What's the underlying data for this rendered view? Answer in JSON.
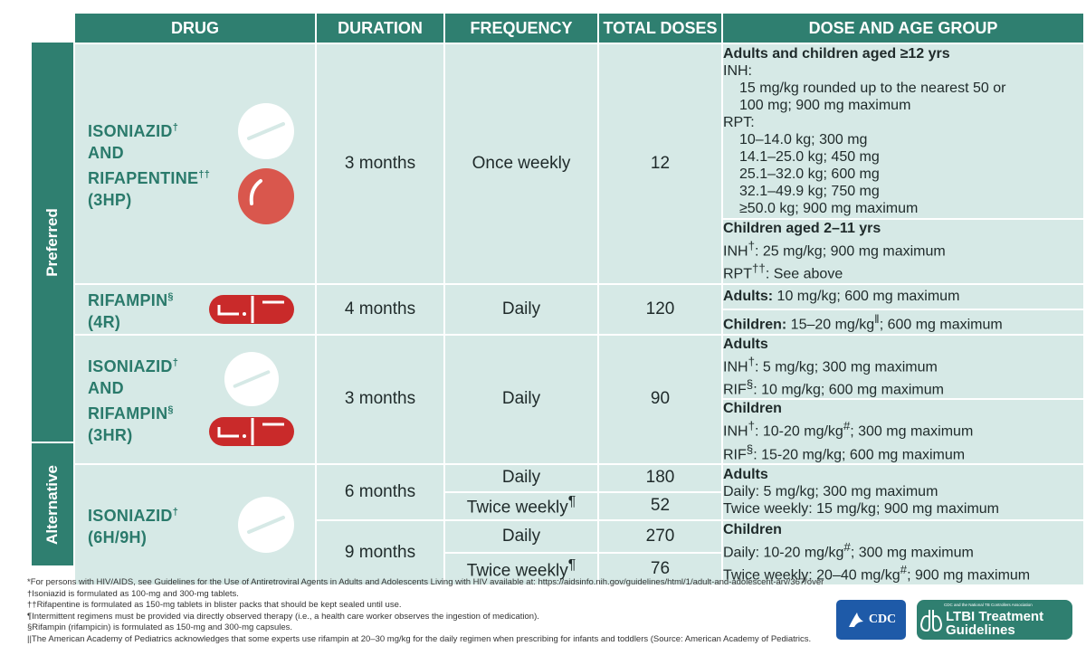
{
  "headers": {
    "drug": "DRUG",
    "duration": "DURATION",
    "frequency": "FREQUENCY",
    "total_doses": "TOTAL DOSES",
    "dose_age": "DOSE AND AGE GROUP"
  },
  "groups": {
    "preferred": "Preferred",
    "alternative": "Alternative"
  },
  "rows": {
    "r3hp": {
      "name1": "ISONIAZID",
      "sup1": "†",
      "name2": "AND",
      "name3": "RIFAPENTINE",
      "sup3": "††",
      "name4": "(3HP)",
      "duration": "3 months",
      "frequency": "Once weekly",
      "doses": "12",
      "adults_title": "Adults and children aged ≥12 yrs",
      "inh": "INH:",
      "inh_line1": "15 mg/kg rounded up to the nearest 50 or",
      "inh_line2": "100 mg; 900 mg maximum",
      "rpt": "RPT:",
      "rpt_lines": [
        "10–14.0 kg; 300 mg",
        "14.1–25.0 kg; 450 mg",
        "25.1–32.0 kg; 600 mg",
        "32.1–49.9 kg; 750 mg",
        "≥50.0 kg; 900 mg maximum"
      ],
      "children_title": "Children aged 2–11 yrs",
      "child_inh": "INH",
      "child_inh_sup": "†",
      "child_inh_text": ": 25 mg/kg; 900 mg maximum",
      "child_rpt": "RPT",
      "child_rpt_sup": "††",
      "child_rpt_text": ": See above"
    },
    "r4r": {
      "name1": "RIFAMPIN",
      "sup1": "§",
      "name2": "(4R)",
      "duration": "4 months",
      "frequency": "Daily",
      "doses": "120",
      "adults_label": "Adults:",
      "adults_text": " 10 mg/kg; 600 mg maximum",
      "children_label": "Children:",
      "children_text": " 15–20 mg/kg",
      "children_sup": "‖",
      "children_text2": "; 600 mg maximum"
    },
    "r3hr": {
      "name1": "ISONIAZID",
      "sup1": "†",
      "name2": "AND",
      "name3": "RIFAMPIN",
      "sup3": "§",
      "name4": "(3HR)",
      "duration": "3 months",
      "frequency": "Daily",
      "doses": "90",
      "adults_title": "Adults",
      "a_inh": "INH",
      "a_inh_sup": "†",
      "a_inh_text": ": 5 mg/kg; 300 mg maximum",
      "a_rif": "RIF",
      "a_rif_sup": "§",
      "a_rif_text": ": 10 mg/kg; 600 mg maximum",
      "children_title": "Children",
      "c_inh": "INH",
      "c_inh_sup": "†",
      "c_inh_text": ": 10-20 mg/kg",
      "c_inh_sup2": "#",
      "c_inh_text2": "; 300 mg maximum",
      "c_rif": "RIF",
      "c_rif_sup": "§",
      "c_rif_text": ": 15-20 mg/kg; 600 mg maximum"
    },
    "r6h9h": {
      "name1": "ISONIAZID",
      "sup1": "†",
      "name2": "(6H/9H)",
      "dur6": "6 months",
      "dur9": "9 months",
      "freq_daily_6": "Daily",
      "freq_twice_6": "Twice weekly",
      "twice_sup": "¶",
      "freq_daily_9": "Daily",
      "freq_twice_9": "Twice weekly",
      "d180": "180",
      "d52": "52",
      "d270": "270",
      "d76": "76",
      "adults_title": "Adults",
      "a_daily": "Daily: 5 mg/kg; 300 mg maximum",
      "a_twice": "Twice weekly: 15 mg/kg; 900 mg maximum",
      "children_title": "Children",
      "c_daily": "Daily: 10-20 mg/kg",
      "c_daily_sup": "#",
      "c_daily2": "; 300 mg maximum",
      "c_twice": "Twice weekly: 20–40 mg/kg",
      "c_twice_sup": "#",
      "c_twice2": "; 900 mg maximum"
    }
  },
  "footnotes": [
    "*For persons with HIV/AIDS, see Guidelines for the Use of Antiretroviral Agents in Adults and Adolescents Living with HIV available at: https://aidsinfo.nih.gov/guidelines/html/1/adult-and-adolescent-arv/367/overview.",
    "†Isoniazid is formulated as 100-mg and 300-mg tablets.",
    "††Rifapentine is formulated as 150-mg tablets in blister packs that should be kept sealed until use.",
    "¶Intermittent regimens must be provided via directly observed therapy (i.e., a health care worker observes the ingestion of medication).",
    "§Rifampin (rifampicin) is formulated as 150-mg and 300-mg capsules.",
    "||The American Academy of Pediatrics acknowledges that some experts use rifampin at 20–30 mg/kg for the daily regimen when prescribing for infants and toddlers (Source: American Academy of Pediatrics."
  ],
  "logos": {
    "cdc": "CDC",
    "ltbi_small": "CDC and the National TB Controllers Association",
    "ltbi_line1": "LTBI Treatment",
    "ltbi_line2": "Guidelines"
  },
  "colors": {
    "header": "#2f7f70",
    "cell": "#d6e9e6",
    "drug_text": "#2a7a6b",
    "tablet": "#ffffff",
    "rifapentine": "#d9574d",
    "capsule": "#c92a2a"
  },
  "icons": [
    "white-tablet-icon",
    "red-tablet-icon",
    "red-capsule-icon",
    "hhs-eagle-icon",
    "lungs-icon"
  ]
}
